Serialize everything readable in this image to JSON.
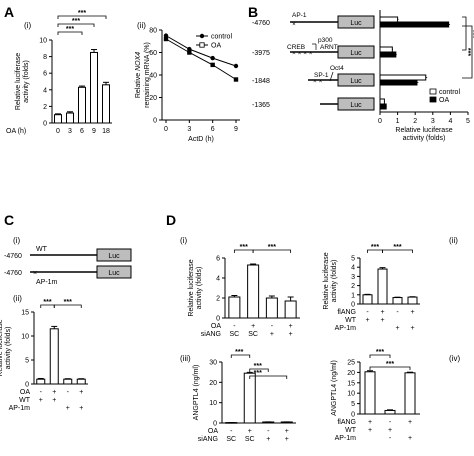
{
  "panels": {
    "A": "A",
    "B": "B",
    "C": "C",
    "D": "D"
  },
  "chart_data": [
    {
      "id": "A-i",
      "type": "bar",
      "sublabel": "(i)",
      "categories": [
        "0",
        "3",
        "6",
        "9",
        "18"
      ],
      "values": [
        1.0,
        1.2,
        4.3,
        8.5,
        4.6
      ],
      "errors": [
        0.1,
        0.15,
        0.15,
        0.35,
        0.3
      ],
      "fills": [
        "#ffffff",
        "#ffffff",
        "#ffffff",
        "#ffffff",
        "#ffffff"
      ],
      "xlabel_prefix": "OA (h)",
      "ylabel": [
        "Relative luciferase",
        "activity (folds)"
      ],
      "ylim": [
        0,
        10
      ],
      "yticks": [
        0,
        2,
        4,
        6,
        8,
        10
      ],
      "sig": [
        {
          "from": 0,
          "to": 4,
          "label": "***"
        },
        {
          "from": 0,
          "to": 3,
          "label": "***"
        },
        {
          "from": 0,
          "to": 2,
          "label": "***"
        }
      ]
    },
    {
      "id": "A-ii",
      "type": "line",
      "sublabel": "(ii)",
      "x": [
        0,
        3,
        6,
        9
      ],
      "xticks": [
        "0",
        "3",
        "6",
        "9"
      ],
      "xlabel": "ActD (h)",
      "ylabel_pre": "Relative ",
      "ylabel_italic": "NOX4",
      "ylabel_post": "",
      "ylabel2": "remaining mRNA (%)",
      "ylim": [
        0,
        80
      ],
      "yticks": [
        0,
        20,
        40,
        60,
        80
      ],
      "series": [
        {
          "name": "control",
          "values": [
            75,
            63,
            55,
            48
          ],
          "marker": "circle"
        },
        {
          "name": "OA",
          "values": [
            72,
            60,
            49,
            36
          ],
          "marker": "square"
        }
      ]
    },
    {
      "id": "B",
      "type": "bar",
      "orientation": "horizontal",
      "constructs": [
        {
          "pos": "-4760",
          "sites": [
            "AP-1",
            "p300",
            "CREB",
            "ARNT",
            "SP-1",
            "Oct4"
          ],
          "control": 1.0,
          "oa": 3.9,
          "control_err": 0.05,
          "oa_err": 0.08
        },
        {
          "pos": "-3975",
          "sites": [],
          "control": 0.7,
          "oa": 0.9,
          "control_err": 0.03,
          "oa_err": 0.05
        },
        {
          "pos": "-1848",
          "sites": [],
          "control": 2.6,
          "oa": 2.1,
          "control_err": 0.08,
          "oa_err": 0.08
        },
        {
          "pos": "-1365",
          "sites": [],
          "control": 0.25,
          "oa": 0.35,
          "control_err": 0.02,
          "oa_err": 0.03
        }
      ],
      "site_labels": {
        "ap1": "AP-1",
        "p300": "p300",
        "creb": "CREB",
        "arnt": "ARNT",
        "oct4": "Oct4",
        "sp1": "SP-1"
      },
      "luc": "Luc",
      "xlim": [
        0,
        5
      ],
      "xticks": [
        0,
        1,
        2,
        3,
        4,
        5
      ],
      "xlabel": [
        "Relative luciferase",
        "activity (folds)"
      ],
      "legend": [
        {
          "name": "control",
          "fill": "#ffffff"
        },
        {
          "name": "OA",
          "fill": "#000000"
        }
      ],
      "sig": [
        "***",
        "***"
      ]
    },
    {
      "id": "C-ii",
      "type": "bar",
      "sublabel": "(ii)",
      "values": [
        1.0,
        11.5,
        1.0,
        1.0
      ],
      "errors": [
        0.15,
        0.5,
        0.1,
        0.1
      ],
      "fills": [
        "#ffffff",
        "#ffffff",
        "#ffffff",
        "#ffffff"
      ],
      "conditions": [
        {
          "label": "OA",
          "marks": [
            "-",
            "+",
            "-",
            "+"
          ]
        },
        {
          "label": "WT",
          "marks": [
            "+",
            "+",
            "",
            ""
          ]
        },
        {
          "label": "AP-1m",
          "marks": [
            "",
            "",
            "+",
            "+"
          ]
        }
      ],
      "ylabel": [
        "Relative luciferase",
        "activity (folds)"
      ],
      "ylim": [
        0,
        15
      ],
      "yticks": [
        0,
        5,
        10,
        15
      ],
      "sig": [
        {
          "from": 0,
          "to": 1,
          "label": "***"
        },
        {
          "from": 1,
          "to": 3,
          "label": "***"
        }
      ]
    },
    {
      "id": "D-i",
      "type": "bar",
      "sublabel": "(i)",
      "values": [
        2.1,
        5.3,
        2.0,
        1.7
      ],
      "errors": [
        0.15,
        0.1,
        0.2,
        0.4
      ],
      "fills": [
        "#ffffff",
        "#ffffff",
        "#ffffff",
        "#ffffff"
      ],
      "conditions": [
        {
          "label": "OA",
          "marks": [
            "-",
            "+",
            "-",
            "+"
          ]
        },
        {
          "label": "siANG",
          "marks": [
            "SC",
            "SC",
            "+",
            "+"
          ]
        }
      ],
      "ylabel": [
        "Relative luciferase",
        "activity (folds)"
      ],
      "ylim": [
        0,
        6
      ],
      "yticks": [
        0,
        2,
        4,
        6
      ],
      "sig": [
        {
          "from": 0,
          "to": 1,
          "label": "***"
        },
        {
          "from": 1,
          "to": 3,
          "label": "***"
        }
      ]
    },
    {
      "id": "D-ii",
      "type": "bar",
      "sublabel": "(ii)",
      "values": [
        1.0,
        3.8,
        0.7,
        0.75
      ],
      "errors": [
        0.05,
        0.15,
        0.04,
        0.04
      ],
      "fills": [
        "#ffffff",
        "#ffffff",
        "#ffffff",
        "#ffffff"
      ],
      "conditions": [
        {
          "label": "flANG",
          "marks": [
            "-",
            "+",
            "-",
            "+"
          ]
        },
        {
          "label": "WT",
          "marks": [
            "+",
            "+",
            "",
            ""
          ]
        },
        {
          "label": "AP-1m",
          "marks": [
            "",
            "",
            "+",
            "+"
          ]
        }
      ],
      "ylabel": [
        "Relative luciferase",
        "activity (folds)"
      ],
      "ylim": [
        0,
        5
      ],
      "yticks": [
        0,
        1,
        2,
        3,
        4,
        5
      ],
      "sig": [
        {
          "from": 0,
          "to": 1,
          "label": "***"
        },
        {
          "from": 1,
          "to": 3,
          "label": "***"
        }
      ]
    },
    {
      "id": "D-iii",
      "type": "bar",
      "sublabel": "(iii)",
      "values": [
        0.2,
        24.5,
        0.5,
        0.5
      ],
      "errors": [
        0.05,
        0.4,
        0.05,
        0.05
      ],
      "fills": [
        "#ffffff",
        "#ffffff",
        "#ffffff",
        "#ffffff"
      ],
      "conditions": [
        {
          "label": "OA",
          "marks": [
            "-",
            "+",
            "-",
            "+"
          ]
        },
        {
          "label": "siANG",
          "marks": [
            "SC",
            "SC",
            "+",
            "+"
          ]
        }
      ],
      "ylabel": [
        "ANGPTL4 (ng/ml)"
      ],
      "ylim": [
        0,
        30
      ],
      "yticks": [
        0,
        10,
        20,
        30
      ],
      "sig": [
        {
          "from": 0,
          "to": 1,
          "label": "***"
        },
        {
          "from": 1,
          "to": 2,
          "label": "***"
        },
        {
          "from": 1,
          "to": 3,
          "label": "***"
        }
      ]
    },
    {
      "id": "D-iv",
      "type": "bar",
      "sublabel": "(iv)",
      "values": [
        20.3,
        1.7,
        19.8
      ],
      "errors": [
        0.5,
        0.3,
        0.3
      ],
      "fills": [
        "#ffffff",
        "#ffffff",
        "#ffffff"
      ],
      "conditions": [
        {
          "label": "flANG",
          "marks": [
            "+",
            "-",
            "+"
          ]
        },
        {
          "label": "WT",
          "marks": [
            "+",
            "+",
            ""
          ]
        },
        {
          "label": "AP-1m",
          "marks": [
            "",
            "-",
            "+"
          ]
        }
      ],
      "ylabel": [
        "ANGPTL4 (ng/ml)"
      ],
      "ylim": [
        0,
        25
      ],
      "yticks": [
        0,
        5,
        10,
        15,
        20,
        25
      ],
      "sig": [
        {
          "from": 0,
          "to": 1,
          "label": "***"
        },
        {
          "from": 0,
          "to": 2,
          "label": "***"
        }
      ]
    }
  ],
  "panel_C_diagram": {
    "sublabel": "(i)",
    "rows": [
      {
        "pos": "-4760",
        "name": "WT"
      },
      {
        "pos": "-4760",
        "name": "AP-1m"
      }
    ],
    "luc": "Luc"
  }
}
